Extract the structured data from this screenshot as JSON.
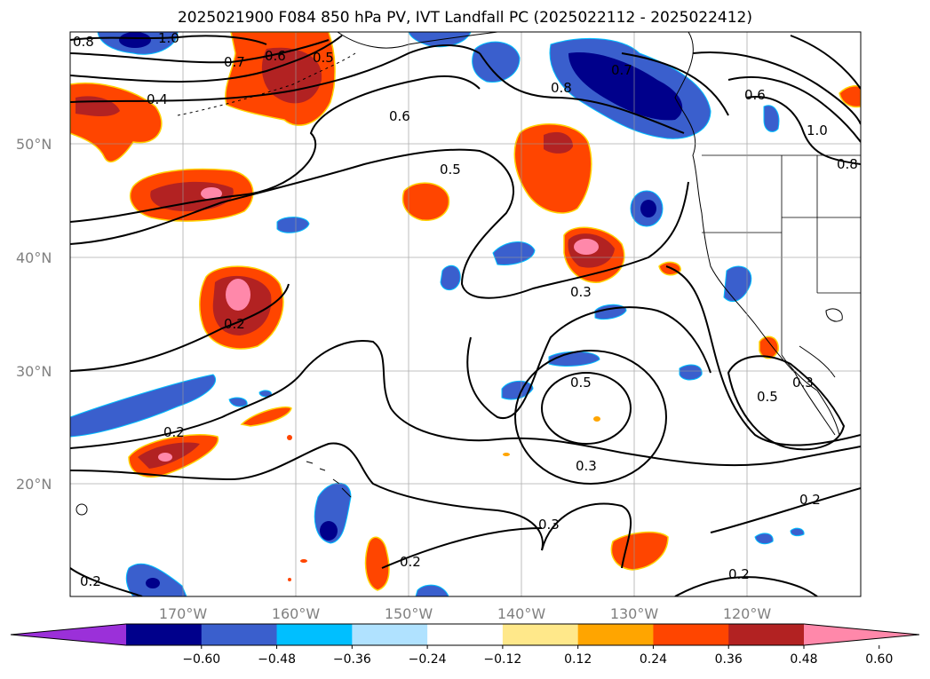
{
  "title": "2025021900 F084 850 hPa PV, IVT Landfall PC (2025022112 - 2025022412)",
  "lat_labels": [
    "50°N",
    "40°N",
    "30°N",
    "20°N"
  ],
  "lon_labels": [
    "170°W",
    "160°W",
    "150°W",
    "140°W",
    "130°W",
    "120°W"
  ],
  "colorbar": {
    "ticks": [
      "−0.60",
      "−0.48",
      "−0.36",
      "−0.24",
      "−0.12",
      "0.12",
      "0.24",
      "0.36",
      "0.48",
      "0.60"
    ],
    "colors": [
      "#9b30d9",
      "#00008b",
      "#3a5fcd",
      "#00bfff",
      "#b0e2ff",
      "#ffffff",
      "#ffe88a",
      "#ffa500",
      "#ff4500",
      "#b22222",
      "#ff88aa"
    ]
  },
  "contour_labels": [
    "0.8",
    "1.0",
    "0.7",
    "0.6",
    "0.5",
    "0.4",
    "0.6",
    "0.5",
    "0.8",
    "0.7",
    "0.6",
    "1.0",
    "0.8",
    "0.2",
    "0.3",
    "0.5",
    "0.5",
    "0.3",
    "0.2",
    "0.3",
    "0.3",
    "0.2",
    "0.2",
    "0.2",
    "0.2"
  ],
  "icons": {
    "map": "map-projection",
    "colorbar": "colorbar"
  }
}
